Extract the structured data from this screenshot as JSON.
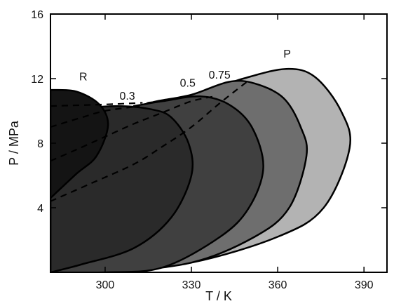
{
  "chart_data": {
    "type": "area",
    "title": "",
    "xlabel": "T / K",
    "ylabel": "P / MPa",
    "xlim": [
      281,
      398
    ],
    "ylim": [
      0,
      16
    ],
    "xticks": [
      300,
      330,
      360,
      390
    ],
    "yticks": [
      4,
      8,
      12,
      16
    ],
    "grid": false,
    "series": [
      {
        "name": "P",
        "label_at": [
          362,
          13.3
        ],
        "color": "#b3b3b3",
        "critical_point": [
          385,
          7.7
        ],
        "outline": [
          [
            281,
            0
          ],
          [
            300,
            0
          ],
          [
            330,
            0.6
          ],
          [
            360,
            2.2
          ],
          [
            376,
            4.0
          ],
          [
            385,
            7.7
          ],
          [
            382,
            10.0
          ],
          [
            373,
            12.1
          ],
          [
            363,
            12.6
          ],
          [
            348,
            12.0
          ],
          [
            333,
            11.1
          ],
          [
            320,
            10.6
          ],
          [
            315,
            10.5
          ],
          [
            314,
            10.3
          ]
        ]
      },
      {
        "name": "0.75",
        "label_at": [
          336,
          12.0
        ],
        "color": "#6e6e6e",
        "critical_point": [
          370,
          7.2
        ],
        "outline": [
          [
            281,
            0
          ],
          [
            300,
            0
          ],
          [
            330,
            0.6
          ],
          [
            352,
            2.2
          ],
          [
            364,
            4.0
          ],
          [
            370,
            7.2
          ],
          [
            368,
            9.0
          ],
          [
            362,
            10.8
          ],
          [
            352,
            11.7
          ],
          [
            343,
            11.8
          ],
          [
            330,
            11.0
          ],
          [
            318,
            10.6
          ],
          [
            312,
            10.3
          ]
        ]
      },
      {
        "name": "0.5",
        "label_at": [
          326,
          11.5
        ],
        "color": "#404040",
        "critical_point": [
          355,
          6.5
        ],
        "outline": [
          [
            281,
            0
          ],
          [
            300,
            0
          ],
          [
            320,
            0.3
          ],
          [
            340,
            2.2
          ],
          [
            350,
            4.0
          ],
          [
            355,
            6.5
          ],
          [
            351,
            9.0
          ],
          [
            343,
            10.4
          ],
          [
            333,
            10.9
          ],
          [
            320,
            10.6
          ],
          [
            310,
            10.3
          ]
        ]
      },
      {
        "name": "0.3",
        "label_at": [
          305,
          10.7
        ],
        "color": "#2a2a2a",
        "critical_point": [
          330,
          6.0
        ],
        "outline": [
          [
            281,
            0
          ],
          [
            292,
            0.5
          ],
          [
            310,
            1.5
          ],
          [
            323,
            3.4
          ],
          [
            330,
            6.0
          ],
          [
            329,
            8.0
          ],
          [
            323,
            9.6
          ],
          [
            316,
            10.1
          ],
          [
            305,
            10.3
          ],
          [
            292,
            10.2
          ],
          [
            281,
            10.3
          ]
        ]
      },
      {
        "name": "R",
        "label_at": [
          291,
          11.9
        ],
        "color": "#141414",
        "critical_point": [
          301,
          9.1
        ],
        "outline": [
          [
            281,
            4.6
          ],
          [
            290,
            6.1
          ],
          [
            297,
            7.2
          ],
          [
            301,
            9.1
          ],
          [
            298,
            10.4
          ],
          [
            290,
            11.2
          ],
          [
            281,
            11.3
          ]
        ]
      }
    ],
    "dashed_lines": [
      {
        "points": [
          [
            281,
            10.3
          ],
          [
            300,
            10.4
          ],
          [
            313,
            10.5
          ]
        ]
      },
      {
        "points": [
          [
            281,
            9.0
          ],
          [
            292,
            9.6
          ],
          [
            300,
            10.0
          ],
          [
            312,
            10.3
          ]
        ]
      },
      {
        "points": [
          [
            281,
            6.9
          ],
          [
            290,
            7.6
          ],
          [
            300,
            8.4
          ],
          [
            310,
            9.2
          ],
          [
            320,
            9.9
          ],
          [
            330,
            10.6
          ],
          [
            338,
            10.9
          ]
        ]
      },
      {
        "points": [
          [
            281,
            4.4
          ],
          [
            295,
            5.5
          ],
          [
            310,
            6.7
          ],
          [
            320,
            7.8
          ],
          [
            330,
            9.0
          ],
          [
            340,
            10.5
          ],
          [
            350,
            11.9
          ]
        ]
      }
    ]
  }
}
